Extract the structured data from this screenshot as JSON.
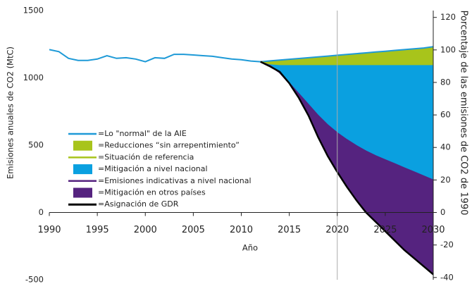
{
  "chart_data": {
    "type": "line",
    "xlabel": "Año",
    "ylabel": "Emisiones anuales de CO2 (MtC)",
    "y2label": "Porcentaje de las emisiones de CO2 de 1990",
    "x": [
      1990,
      1991,
      1992,
      1993,
      1994,
      1995,
      1996,
      1997,
      1998,
      1999,
      2000,
      2001,
      2002,
      2003,
      2004,
      2005,
      2006,
      2007,
      2008,
      2009,
      2010,
      2011,
      2012,
      2013,
      2014,
      2015,
      2016,
      2017,
      2018,
      2019,
      2020,
      2021,
      2022,
      2023,
      2024,
      2025,
      2026,
      2027,
      2028,
      2029,
      2030
    ],
    "xlim": [
      1990,
      2030
    ],
    "xticks": [
      1990,
      1995,
      2000,
      2005,
      2010,
      2015,
      2020,
      2025,
      2030
    ],
    "ylim": [
      -500,
      1500
    ],
    "yticks": [
      -500,
      0,
      500,
      1000,
      1500
    ],
    "y2lim": [
      -41.4,
      124.2
    ],
    "y2ticks": [
      -40,
      -20,
      0,
      20,
      40,
      60,
      80,
      100,
      120
    ],
    "vline": 2020,
    "series": [
      {
        "name": "=Lo \"normal\" de la AIE",
        "kind": "line",
        "color": "#1e9ad7",
        "values": [
          1210,
          1195,
          1145,
          1130,
          1130,
          1140,
          1165,
          1145,
          1150,
          1140,
          1120,
          1150,
          1145,
          1175,
          1175,
          1170,
          1165,
          1160,
          1150,
          1140,
          1135,
          1125,
          1120,
          1126,
          1132,
          1138,
          1144,
          1150,
          1156,
          1162,
          1168,
          1174,
          1180,
          1186,
          1192,
          1198,
          1204,
          1210,
          1216,
          1222,
          1232
        ]
      },
      {
        "name": "=Reducciones “sin arrepentimiento”",
        "kind": "area",
        "color": "#a8c41b",
        "between": [
          0,
          2
        ]
      },
      {
        "name": "=Situación de referencia",
        "kind": "line",
        "color": "#a8c41b",
        "values": [
          null,
          null,
          null,
          null,
          null,
          null,
          null,
          null,
          null,
          null,
          null,
          null,
          null,
          null,
          null,
          null,
          null,
          null,
          null,
          null,
          null,
          null,
          1120,
          1105,
          1100,
          1100,
          1100,
          1100,
          1100,
          1100,
          1100,
          1100,
          1100,
          1100,
          1100,
          1100,
          1100,
          1100,
          1100,
          1100,
          1100
        ]
      },
      {
        "name": "=Mitigación a nivel nacional",
        "kind": "area",
        "color": "#0aa0e0",
        "between": [
          2,
          4
        ]
      },
      {
        "name": "=Emisiones indicativas a nivel nacional",
        "kind": "line",
        "color": "#55237f",
        "values": [
          null,
          null,
          null,
          null,
          null,
          null,
          null,
          null,
          null,
          null,
          null,
          null,
          null,
          null,
          null,
          null,
          null,
          null,
          null,
          null,
          null,
          null,
          1120,
          1090,
          1040,
          960,
          880,
          800,
          720,
          650,
          590,
          540,
          495,
          455,
          420,
          390,
          360,
          330,
          300,
          270,
          240
        ]
      },
      {
        "name": "=Mitigación en otros países",
        "kind": "area",
        "color": "#55237f",
        "between": [
          4,
          6
        ]
      },
      {
        "name": "=Asignación de GDR",
        "kind": "line",
        "color": "#000000",
        "values": [
          null,
          null,
          null,
          null,
          null,
          null,
          null,
          null,
          null,
          null,
          null,
          null,
          null,
          null,
          null,
          null,
          null,
          null,
          null,
          null,
          null,
          null,
          1120,
          1085,
          1045,
          960,
          850,
          720,
          560,
          420,
          300,
          190,
          90,
          0,
          -70,
          -140,
          -210,
          -280,
          -340,
          -400,
          -460
        ]
      }
    ]
  }
}
